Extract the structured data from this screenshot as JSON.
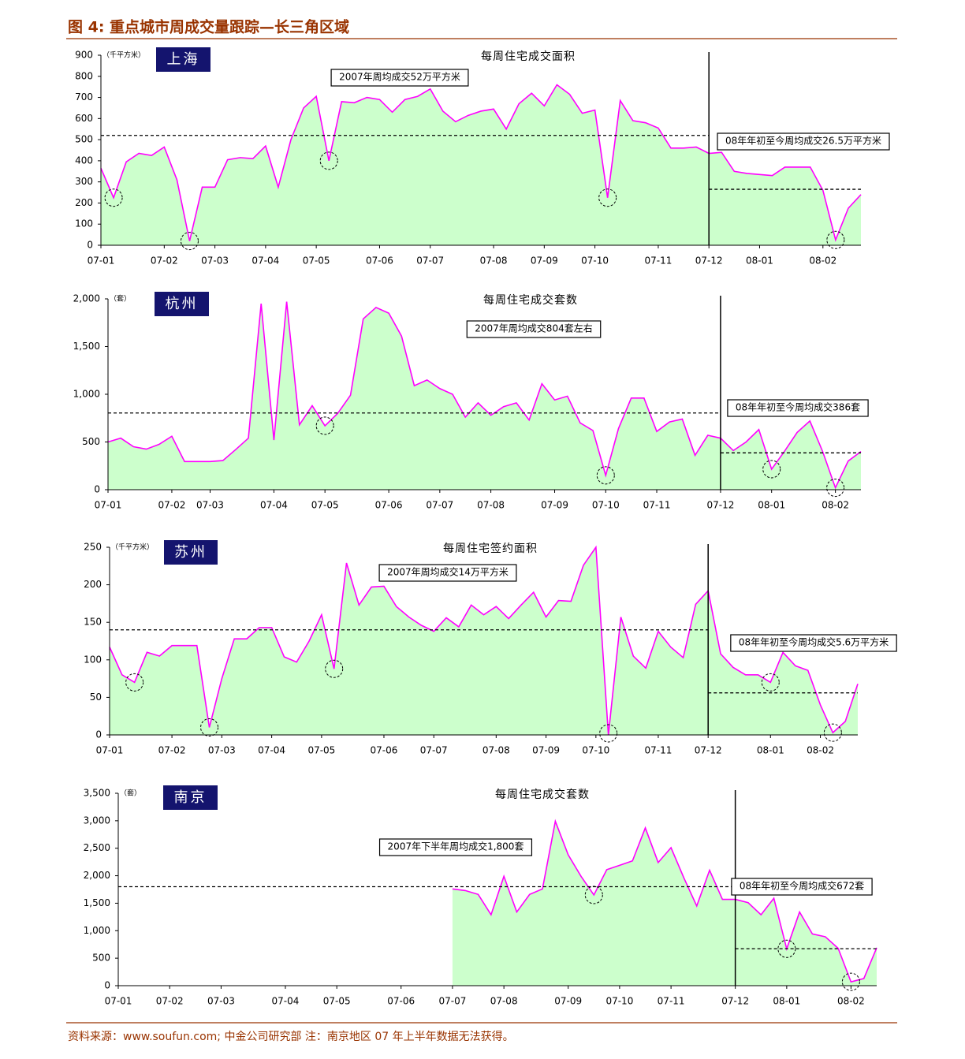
{
  "title": "图 4: 重点城市周成交量跟踪—长三角区域",
  "source": "资料来源：www.soufun.com; 中金公司研究部 注：南京地区 07 年上半年数据无法获得。",
  "chart_data": [
    {
      "type": "area",
      "city": "上海",
      "title": "每周住宅成交面积",
      "unit": "（千平方米）",
      "color": "#ff00ff",
      "fill": "#ccffcc",
      "categories": [
        "07-01",
        null,
        null,
        null,
        null,
        "07-02",
        null,
        null,
        null,
        "07-03",
        null,
        null,
        null,
        "07-04",
        null,
        null,
        null,
        "07-05",
        null,
        null,
        null,
        null,
        "07-06",
        null,
        null,
        null,
        "07-07",
        null,
        null,
        null,
        null,
        "07-08",
        null,
        null,
        null,
        "07-09",
        null,
        null,
        null,
        "07-10",
        null,
        null,
        null,
        null,
        "07-11",
        null,
        null,
        null,
        "07-12",
        null,
        null,
        null,
        "08-01",
        null,
        null,
        null,
        null,
        "08-02",
        null,
        null,
        null
      ],
      "values": [
        365,
        225,
        395,
        435,
        425,
        465,
        310,
        20,
        275,
        275,
        405,
        415,
        410,
        470,
        275,
        500,
        650,
        705,
        400,
        680,
        675,
        700,
        690,
        630,
        690,
        705,
        740,
        635,
        585,
        615,
        635,
        645,
        550,
        670,
        720,
        660,
        760,
        715,
        625,
        640,
        225,
        685,
        590,
        580,
        555,
        460,
        460,
        465,
        435,
        440,
        350,
        340,
        335,
        330,
        370,
        370,
        370,
        260,
        25,
        175,
        240
      ],
      "ylim": [
        0,
        900
      ],
      "yticks": [
        0,
        100,
        200,
        300,
        400,
        500,
        600,
        700,
        800,
        900
      ],
      "reference_lines": [
        {
          "value": 520,
          "label": "2007年周均成交52万平方米"
        },
        {
          "value": 265,
          "label": "08年年初至今周均成交26.5万平方米"
        }
      ]
    },
    {
      "type": "area",
      "city": "杭州",
      "title": "每周住宅成交套数",
      "unit": "（套）",
      "color": "#ff00ff",
      "fill": "#ccffcc",
      "categories": [
        "07-01",
        null,
        null,
        null,
        null,
        "07-02",
        null,
        null,
        "07-03",
        null,
        null,
        null,
        null,
        "07-04",
        null,
        null,
        null,
        "07-05",
        null,
        null,
        null,
        null,
        "07-06",
        null,
        null,
        null,
        "07-07",
        null,
        null,
        null,
        "07-08",
        null,
        null,
        null,
        null,
        "07-09",
        null,
        null,
        null,
        "07-10",
        null,
        null,
        null,
        "07-11",
        null,
        null,
        null,
        null,
        "07-12",
        null,
        null,
        null,
        "08-01",
        null,
        null,
        null,
        null,
        "08-02",
        null,
        null
      ],
      "values": [
        500,
        540,
        450,
        425,
        475,
        560,
        295,
        295,
        295,
        305,
        420,
        540,
        1950,
        520,
        1970,
        680,
        880,
        670,
        800,
        990,
        1790,
        1910,
        1850,
        1610,
        1090,
        1150,
        1060,
        1000,
        760,
        910,
        780,
        870,
        910,
        730,
        1110,
        940,
        980,
        700,
        620,
        150,
        640,
        960,
        960,
        610,
        710,
        740,
        360,
        570,
        540,
        410,
        500,
        630,
        215,
        400,
        600,
        720,
        400,
        20,
        300,
        400
      ],
      "ylim": [
        0,
        2000
      ],
      "yticks": [
        0,
        500,
        {
          "value": 1000,
          "label": "1,000"
        },
        {
          "value": 1500,
          "label": "1,500"
        },
        {
          "value": 2000,
          "label": "2,000"
        }
      ],
      "reference_lines": [
        {
          "value": 804,
          "label": "2007年周均成交804套左右"
        },
        {
          "value": 386,
          "label": "08年年初至今周均成交386套"
        }
      ]
    },
    {
      "type": "area",
      "city": "苏州",
      "title": "每周住宅签约面积",
      "unit": "（千平方米）",
      "color": "#ff00ff",
      "fill": "#ccffcc",
      "categories": [
        "07-01",
        null,
        null,
        null,
        null,
        "07-02",
        null,
        null,
        null,
        "07-03",
        null,
        null,
        null,
        "07-04",
        null,
        null,
        null,
        "07-05",
        null,
        null,
        null,
        null,
        "07-06",
        null,
        null,
        null,
        "07-07",
        null,
        null,
        null,
        null,
        "07-08",
        null,
        null,
        null,
        "07-09",
        null,
        null,
        null,
        "07-10",
        null,
        null,
        null,
        null,
        "07-11",
        null,
        null,
        null,
        "07-12",
        null,
        null,
        null,
        null,
        "08-01",
        null,
        null,
        null,
        "08-02",
        null,
        null,
        null
      ],
      "values": [
        117,
        80,
        70,
        110,
        105,
        119,
        119,
        119,
        10,
        75,
        128,
        128,
        143,
        143,
        104,
        97,
        125,
        160,
        88,
        229,
        173,
        197,
        198,
        171,
        157,
        146,
        138,
        156,
        144,
        173,
        160,
        171,
        155,
        173,
        190,
        157,
        179,
        178,
        226,
        250,
        0,
        157,
        105,
        89,
        138,
        117,
        103,
        174,
        192,
        108,
        90,
        80,
        80,
        70,
        110,
        92,
        86,
        40,
        3,
        18,
        68
      ],
      "ylim": [
        0,
        250
      ],
      "yticks": [
        0,
        50,
        100,
        150,
        200,
        250
      ],
      "reference_lines": [
        {
          "value": 140,
          "label": "2007年周均成交14万平方米"
        },
        {
          "value": 56,
          "label": "08年年初至今周均成交5.6万平方米"
        }
      ]
    },
    {
      "type": "area",
      "city": "南京",
      "title": "每周住宅成交套数",
      "unit": "（套）",
      "color": "#ff00ff",
      "fill": "#ccffcc",
      "categories": [
        "07-01",
        null,
        null,
        null,
        "07-02",
        null,
        null,
        null,
        "07-03",
        null,
        null,
        null,
        null,
        "07-04",
        null,
        null,
        null,
        "07-05",
        null,
        null,
        null,
        null,
        "07-06",
        null,
        null,
        null,
        "07-07",
        null,
        null,
        null,
        "07-08",
        null,
        null,
        null,
        null,
        "07-09",
        null,
        null,
        null,
        "07-10",
        null,
        null,
        null,
        "07-11",
        null,
        null,
        null,
        null,
        "07-12",
        null,
        null,
        null,
        "08-01",
        null,
        null,
        null,
        null,
        "08-02",
        null,
        null
      ],
      "values": [
        null,
        null,
        null,
        null,
        null,
        null,
        null,
        null,
        null,
        null,
        null,
        null,
        null,
        null,
        null,
        null,
        null,
        null,
        null,
        null,
        null,
        null,
        null,
        null,
        null,
        null,
        1760,
        1730,
        1660,
        1290,
        1990,
        1340,
        1660,
        1760,
        2990,
        2380,
        1990,
        1650,
        2110,
        2190,
        2270,
        2870,
        2240,
        2510,
        1960,
        1450,
        2100,
        1570,
        1570,
        1510,
        1290,
        1590,
        670,
        1340,
        940,
        890,
        680,
        70,
        130,
        690
      ],
      "ylim": [
        0,
        3500
      ],
      "yticks": [
        0,
        500,
        {
          "value": 1000,
          "label": "1,000"
        },
        {
          "value": 1500,
          "label": "1,500"
        },
        {
          "value": 2000,
          "label": "2,000"
        },
        {
          "value": 2500,
          "label": "2,500"
        },
        {
          "value": 3000,
          "label": "3,000"
        },
        {
          "value": 3500,
          "label": "3,500"
        }
      ],
      "reference_lines": [
        {
          "value": 1800,
          "label": "2007年下半年周均成交1,800套"
        },
        {
          "value": 672,
          "label": "08年年初至今周均成交672套"
        }
      ]
    }
  ]
}
